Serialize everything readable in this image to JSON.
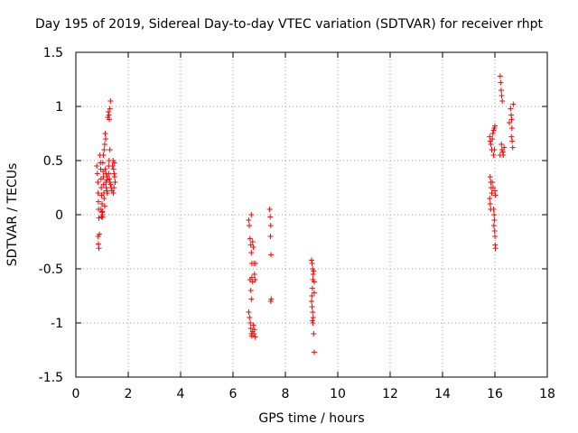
{
  "chart_data": {
    "type": "scatter",
    "title": "Day 195 of 2019, Sidereal Day-to-day VTEC variation (SDTVAR) for receiver rhpt",
    "xlabel": "GPS time / hours",
    "ylabel": "SDTVAR / TECUs",
    "xlim": [
      0,
      18
    ],
    "ylim": [
      -1.5,
      1.5
    ],
    "xticks": [
      0,
      2,
      4,
      6,
      8,
      10,
      12,
      14,
      16,
      18
    ],
    "yticks": [
      -1.5,
      -1,
      -0.5,
      0,
      0.5,
      1,
      1.5
    ],
    "grid": true,
    "marker": "+",
    "color": "#ff0000",
    "series": [
      {
        "name": "SDTVAR",
        "points": [
          [
            0.8,
            0.45
          ],
          [
            0.82,
            0.38
          ],
          [
            0.84,
            0.3
          ],
          [
            0.85,
            0.2
          ],
          [
            0.86,
            0.12
          ],
          [
            0.87,
            0.05
          ],
          [
            0.88,
            -0.03
          ],
          [
            0.85,
            -0.2
          ],
          [
            0.86,
            -0.27
          ],
          [
            0.88,
            -0.31
          ],
          [
            0.9,
            -0.18
          ],
          [
            0.92,
            0.55
          ],
          [
            0.94,
            0.48
          ],
          [
            0.95,
            0.42
          ],
          [
            0.96,
            0.33
          ],
          [
            0.97,
            0.25
          ],
          [
            0.98,
            0.18
          ],
          [
            1.0,
            0.1
          ],
          [
            1.01,
            0.03
          ],
          [
            1.02,
            -0.02
          ],
          [
            1.03,
            0.48
          ],
          [
            1.04,
            0.4
          ],
          [
            1.05,
            0.35
          ],
          [
            1.06,
            0.28
          ],
          [
            1.07,
            0.2
          ],
          [
            1.08,
            0.15
          ],
          [
            1.1,
            0.08
          ],
          [
            1.05,
            0.55
          ],
          [
            1.08,
            0.6
          ],
          [
            1.1,
            0.65
          ],
          [
            1.12,
            0.75
          ],
          [
            1.14,
            0.7
          ],
          [
            1.15,
            0.3
          ],
          [
            1.16,
            0.25
          ],
          [
            1.18,
            0.22
          ],
          [
            1.2,
            0.2
          ],
          [
            1.22,
            0.9
          ],
          [
            1.24,
            0.95
          ],
          [
            1.26,
            0.92
          ],
          [
            1.28,
            0.88
          ],
          [
            1.3,
            0.98
          ],
          [
            1.32,
            1.05
          ],
          [
            1.3,
            0.6
          ],
          [
            1.27,
            0.5
          ],
          [
            1.25,
            0.45
          ],
          [
            1.25,
            0.38
          ],
          [
            1.28,
            0.33
          ],
          [
            1.3,
            0.3
          ],
          [
            1.32,
            0.28
          ],
          [
            1.35,
            0.25
          ],
          [
            1.38,
            0.22
          ],
          [
            1.4,
            0.45
          ],
          [
            1.42,
            0.5
          ],
          [
            1.44,
            0.42
          ],
          [
            1.46,
            0.38
          ],
          [
            1.48,
            0.35
          ],
          [
            1.5,
            0.3
          ],
          [
            1.47,
            0.48
          ],
          [
            1.45,
            0.25
          ],
          [
            1.43,
            0.2
          ],
          [
            1.2,
            0.35
          ],
          [
            1.18,
            0.32
          ],
          [
            1.15,
            0.38
          ],
          [
            1.12,
            0.42
          ],
          [
            1.0,
            0.02
          ],
          [
            1.02,
            0.0
          ],
          [
            0.98,
            -0.02
          ],
          [
            0.96,
            0.05
          ],
          [
            6.6,
            -0.05
          ],
          [
            6.62,
            -0.1
          ],
          [
            6.65,
            -0.22
          ],
          [
            6.68,
            -0.28
          ],
          [
            6.7,
            -0.35
          ],
          [
            6.72,
            -0.45
          ],
          [
            6.65,
            -0.6
          ],
          [
            6.68,
            -0.7
          ],
          [
            6.7,
            -0.78
          ],
          [
            6.6,
            -0.9
          ],
          [
            6.63,
            -0.95
          ],
          [
            6.66,
            -1.0
          ],
          [
            6.68,
            -1.05
          ],
          [
            6.7,
            -1.1
          ],
          [
            6.72,
            -1.12
          ],
          [
            6.75,
            -1.08
          ],
          [
            6.78,
            -1.02
          ],
          [
            6.8,
            -1.1
          ],
          [
            6.82,
            -1.06
          ],
          [
            6.85,
            -1.13
          ],
          [
            6.75,
            -0.25
          ],
          [
            6.78,
            -0.3
          ],
          [
            6.8,
            -0.45
          ],
          [
            6.82,
            -0.55
          ],
          [
            6.84,
            -0.6
          ],
          [
            6.86,
            -0.45
          ],
          [
            6.75,
            -0.62
          ],
          [
            6.72,
            -0.58
          ],
          [
            6.7,
            -0.0
          ],
          [
            7.4,
            0.05
          ],
          [
            7.42,
            -0.02
          ],
          [
            7.44,
            -0.1
          ],
          [
            7.43,
            -0.2
          ],
          [
            7.45,
            -0.37
          ],
          [
            7.46,
            -0.78
          ],
          [
            7.44,
            -0.8
          ],
          [
            9.0,
            -0.42
          ],
          [
            9.02,
            -0.45
          ],
          [
            9.04,
            -0.5
          ],
          [
            9.06,
            -0.55
          ],
          [
            9.05,
            -0.6
          ],
          [
            9.03,
            -0.68
          ],
          [
            9.01,
            -0.75
          ],
          [
            9.0,
            -0.8
          ],
          [
            9.02,
            -0.85
          ],
          [
            9.04,
            -0.9
          ],
          [
            9.06,
            -0.95
          ],
          [
            9.05,
            -1.0
          ],
          [
            9.03,
            -0.98
          ],
          [
            9.08,
            -0.52
          ],
          [
            9.1,
            -0.62
          ],
          [
            9.1,
            -0.72
          ],
          [
            9.08,
            -1.1
          ],
          [
            9.1,
            -1.27
          ],
          [
            15.8,
            0.72
          ],
          [
            15.82,
            0.68
          ],
          [
            15.85,
            0.65
          ],
          [
            15.88,
            0.6
          ],
          [
            15.82,
            0.35
          ],
          [
            15.84,
            0.3
          ],
          [
            15.86,
            0.25
          ],
          [
            15.88,
            0.2
          ],
          [
            15.8,
            0.15
          ],
          [
            15.82,
            0.1
          ],
          [
            15.84,
            0.05
          ],
          [
            15.9,
            0.7
          ],
          [
            15.92,
            0.75
          ],
          [
            15.95,
            0.78
          ],
          [
            15.98,
            0.8
          ],
          [
            16.0,
            0.82
          ],
          [
            15.95,
            0.55
          ],
          [
            15.98,
            0.6
          ],
          [
            16.0,
            0.22
          ],
          [
            16.02,
            0.18
          ],
          [
            15.95,
            0.05
          ],
          [
            15.97,
            0.0
          ],
          [
            15.98,
            -0.05
          ],
          [
            15.99,
            -0.15
          ],
          [
            16.0,
            -0.2
          ],
          [
            16.01,
            -0.28
          ],
          [
            16.02,
            -0.31
          ],
          [
            15.96,
            -0.1
          ],
          [
            15.93,
            0.25
          ],
          [
            15.9,
            0.3
          ],
          [
            16.2,
            1.28
          ],
          [
            16.22,
            1.22
          ],
          [
            16.24,
            1.15
          ],
          [
            16.26,
            1.1
          ],
          [
            16.28,
            1.05
          ],
          [
            16.25,
            0.65
          ],
          [
            16.27,
            0.6
          ],
          [
            16.3,
            0.58
          ],
          [
            16.32,
            0.55
          ],
          [
            16.35,
            0.62
          ],
          [
            16.6,
            0.98
          ],
          [
            16.62,
            0.92
          ],
          [
            16.64,
            0.88
          ],
          [
            16.65,
            0.8
          ],
          [
            16.63,
            0.72
          ],
          [
            16.66,
            0.68
          ],
          [
            16.68,
            0.62
          ],
          [
            16.7,
            1.02
          ],
          [
            16.55,
            0.85
          ],
          [
            16.2,
            0.55
          ]
        ]
      }
    ]
  }
}
